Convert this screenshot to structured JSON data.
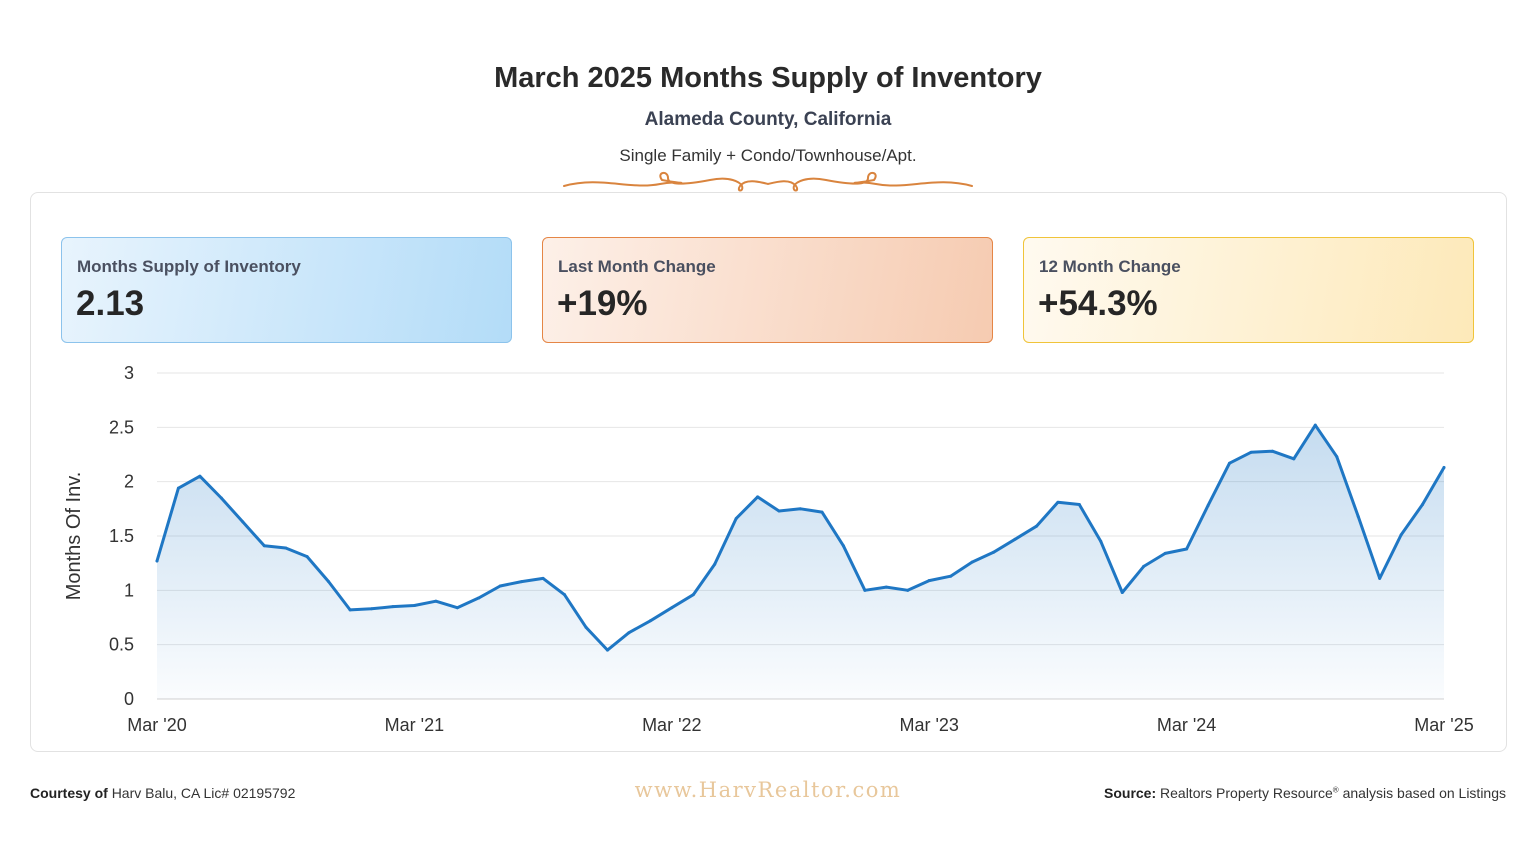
{
  "header": {
    "title": "March 2025 Months Supply of Inventory",
    "subtitle": "Alameda County, California",
    "segment": "Single Family + Condo/Townhouse/Apt."
  },
  "cards": [
    {
      "label": "Months Supply of Inventory",
      "value": "2.13"
    },
    {
      "label": "Last Month Change",
      "value": "+19%"
    },
    {
      "label": "12 Month Change",
      "value": "+54.3%"
    }
  ],
  "chart_data": {
    "type": "area",
    "title": "",
    "xlabel": "",
    "ylabel": "Months Of Inv.",
    "ylim": [
      0,
      3
    ],
    "yticks": [
      0,
      0.5,
      1,
      1.5,
      2,
      2.5,
      3
    ],
    "ytick_labels": [
      "0",
      "0.5",
      "1",
      "1.5",
      "2",
      "2.5",
      "3"
    ],
    "xticks": [
      {
        "index": 0,
        "label": "Mar '20"
      },
      {
        "index": 12,
        "label": "Mar '21"
      },
      {
        "index": 24,
        "label": "Mar '22"
      },
      {
        "index": 36,
        "label": "Mar '23"
      },
      {
        "index": 48,
        "label": "Mar '24"
      },
      {
        "index": 60,
        "label": "Mar '25"
      }
    ],
    "series": [
      {
        "name": "Months Supply of Inventory",
        "color": "#1f77c4",
        "values": [
          1.27,
          1.94,
          2.05,
          1.85,
          1.63,
          1.41,
          1.39,
          1.31,
          1.08,
          0.82,
          0.83,
          0.85,
          0.86,
          0.9,
          0.84,
          0.93,
          1.04,
          1.08,
          1.11,
          0.96,
          0.66,
          0.45,
          0.61,
          0.72,
          0.84,
          0.96,
          1.24,
          1.66,
          1.86,
          1.73,
          1.75,
          1.72,
          1.41,
          1.0,
          1.03,
          1.0,
          1.09,
          1.13,
          1.26,
          1.35,
          1.47,
          1.59,
          1.81,
          1.79,
          1.45,
          0.98,
          1.22,
          1.34,
          1.38,
          1.78,
          2.17,
          2.27,
          2.28,
          2.21,
          2.52,
          2.23,
          1.68,
          1.11,
          1.51,
          1.79,
          2.13
        ]
      }
    ]
  },
  "footer": {
    "courtesy_label": "Courtesy of",
    "courtesy_text": "Harv Balu, CA Lic# 02195792",
    "website": "www.HarvRealtor.com",
    "source_label": "Source:",
    "source_text": "Realtors Property Resource",
    "source_reg": "®",
    "source_suffix": "analysis based on Listings"
  },
  "colors": {
    "line": "#1f77c4",
    "flourish": "#d9843e"
  }
}
